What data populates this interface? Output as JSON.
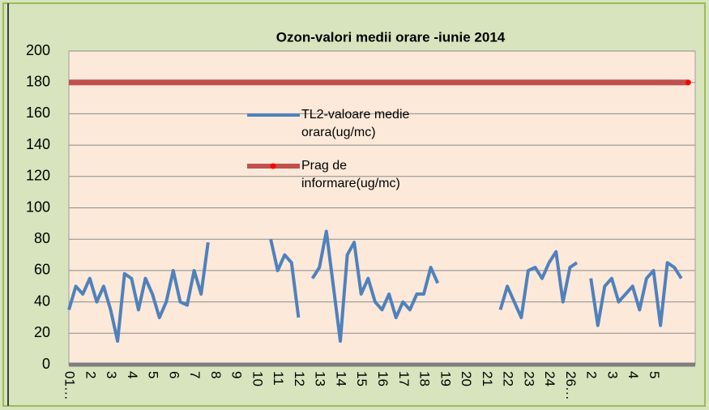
{
  "chart_data": {
    "type": "line",
    "title": "Ozon-valori medii orare -iunie 2014",
    "categories": [
      "01…",
      null,
      null,
      "2",
      null,
      null,
      "3",
      null,
      null,
      "4",
      null,
      null,
      "5",
      null,
      null,
      "6",
      null,
      null,
      "7",
      null,
      null,
      "8",
      null,
      null,
      "9",
      null,
      null,
      "10",
      null,
      null,
      "11",
      null,
      null,
      "12",
      null,
      null,
      "13",
      null,
      null,
      "14",
      null,
      null,
      "15",
      null,
      null,
      "16",
      null,
      null,
      "17",
      null,
      null,
      "18",
      null,
      null,
      "19",
      null,
      null,
      "20",
      null,
      null,
      "21",
      null,
      null,
      "22",
      null,
      null,
      "23",
      null,
      null,
      "24",
      null,
      null,
      "26…",
      null,
      null,
      "2",
      null,
      null,
      "3",
      null,
      null,
      "4",
      null,
      null,
      "5",
      null,
      null,
      null,
      null,
      null
    ],
    "series": [
      {
        "name": "TL2-valoare medie orara(ug/mc)",
        "color": "#4f81bd",
        "values": [
          35,
          50,
          45,
          55,
          40,
          50,
          35,
          15,
          58,
          55,
          35,
          55,
          45,
          30,
          40,
          60,
          40,
          38,
          60,
          45,
          78,
          null,
          null,
          null,
          null,
          null,
          null,
          null,
          null,
          80,
          60,
          70,
          65,
          30,
          null,
          55,
          62,
          85,
          50,
          15,
          70,
          78,
          45,
          55,
          40,
          35,
          45,
          30,
          40,
          35,
          45,
          45,
          62,
          52,
          null,
          null,
          null,
          null,
          null,
          null,
          null,
          null,
          35,
          50,
          40,
          30,
          60,
          62,
          55,
          65,
          72,
          40,
          62,
          65,
          null,
          55,
          25,
          50,
          55,
          40,
          45,
          50,
          35,
          55,
          60,
          25,
          65,
          62,
          55,
          null
        ]
      },
      {
        "name": "Prag de informare(ug/mc)",
        "color": "#c0504d",
        "values": [
          180,
          180,
          180,
          180,
          180,
          180,
          180,
          180,
          180,
          180,
          180,
          180,
          180,
          180,
          180,
          180,
          180,
          180,
          180,
          180,
          180,
          180,
          180,
          180,
          180,
          180,
          180,
          180,
          180,
          180,
          180,
          180,
          180,
          180,
          180,
          180,
          180,
          180,
          180,
          180,
          180,
          180,
          180,
          180,
          180,
          180,
          180,
          180,
          180,
          180,
          180,
          180,
          180,
          180,
          180,
          180,
          180,
          180,
          180,
          180,
          180,
          180,
          180,
          180,
          180,
          180,
          180,
          180,
          180,
          180,
          180,
          180,
          180,
          180,
          180,
          180,
          180,
          180,
          180,
          180,
          180,
          180,
          180,
          180,
          180,
          180,
          180,
          180,
          180,
          180
        ]
      }
    ],
    "ylim": [
      0,
      200
    ],
    "yticks": [
      0,
      20,
      40,
      60,
      80,
      100,
      120,
      140,
      160,
      180,
      200
    ],
    "grid": true
  }
}
